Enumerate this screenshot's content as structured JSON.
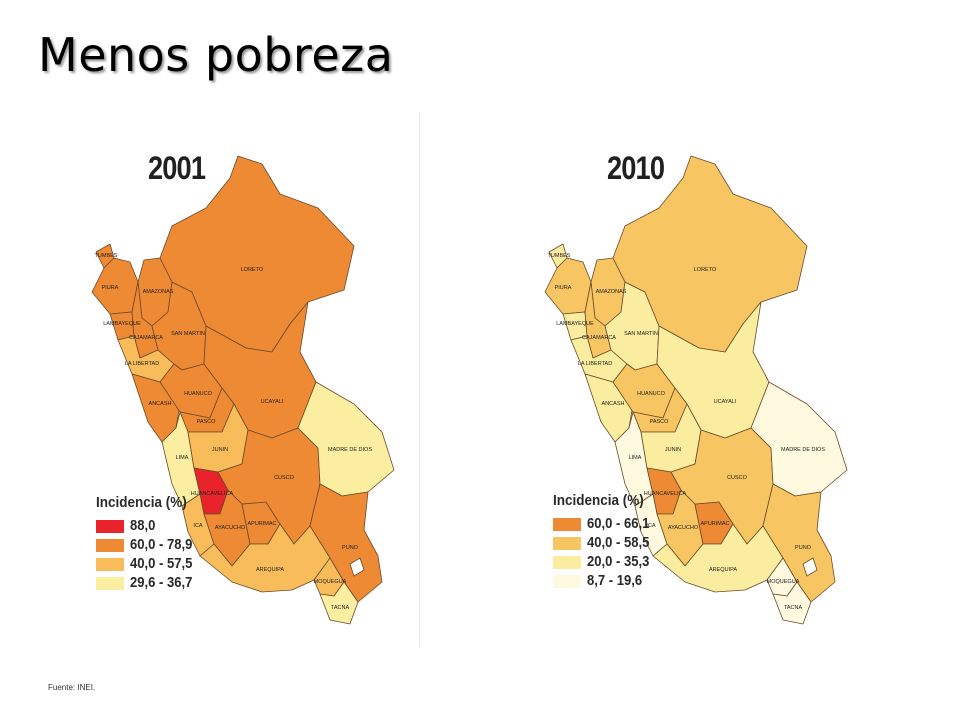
{
  "title": "Menos pobreza",
  "source": "Fuente: INEI.",
  "maps": [
    {
      "year": "2001",
      "legend_title": "Incidencia (%)",
      "legend": [
        {
          "label": "88,0",
          "color": "#e8232c"
        },
        {
          "label": "60,0 - 78,9",
          "color": "#ee8a34"
        },
        {
          "label": "40,0 - 57,5",
          "color": "#f8bd5a"
        },
        {
          "label": "29,6 - 36,7",
          "color": "#fbeea0"
        }
      ],
      "regions": [
        {
          "name": "TUMBES",
          "color": "#ee8a34"
        },
        {
          "name": "PIURA",
          "color": "#ee8a34"
        },
        {
          "name": "LAMBAYEQUE",
          "color": "#ee8a34"
        },
        {
          "name": "AMAZONAS",
          "color": "#ee8a34"
        },
        {
          "name": "CAJAMARCA",
          "color": "#ee8a34"
        },
        {
          "name": "LA LIBERTAD",
          "color": "#f8bd5a"
        },
        {
          "name": "SAN MARTIN",
          "color": "#ee8a34"
        },
        {
          "name": "LORETO",
          "color": "#ee8a34"
        },
        {
          "name": "ANCASH",
          "color": "#ee8a34"
        },
        {
          "name": "HUANUCO",
          "color": "#ee8a34"
        },
        {
          "name": "UCAYALI",
          "color": "#ee8a34"
        },
        {
          "name": "PASCO",
          "color": "#ee8a34"
        },
        {
          "name": "LIMA",
          "color": "#fbeea0"
        },
        {
          "name": "JUNIN",
          "color": "#f8bd5a"
        },
        {
          "name": "HUANCAVELICA",
          "color": "#e8232c"
        },
        {
          "name": "ICA",
          "color": "#f8bd5a"
        },
        {
          "name": "AYACUCHO",
          "color": "#ee8a34"
        },
        {
          "name": "APURIMAC",
          "color": "#ee8a34"
        },
        {
          "name": "CUSCO",
          "color": "#ee8a34"
        },
        {
          "name": "MADRE DE DIOS",
          "color": "#fbeea0"
        },
        {
          "name": "PUNO",
          "color": "#ee8a34"
        },
        {
          "name": "AREQUIPA",
          "color": "#f8bd5a"
        },
        {
          "name": "MOQUEGUA",
          "color": "#f8bd5a"
        },
        {
          "name": "TACNA",
          "color": "#fbeea0"
        }
      ]
    },
    {
      "year": "2010",
      "legend_title": "Incidencia (%)",
      "legend": [
        {
          "label": "60,0 - 66,1",
          "color": "#ee8a34"
        },
        {
          "label": "40,0 - 58,5",
          "color": "#f8c563"
        },
        {
          "label": "20,0 - 35,3",
          "color": "#fbeda0"
        },
        {
          "label": "8,7 - 19,6",
          "color": "#fef9df"
        }
      ],
      "regions": [
        {
          "name": "TUMBES",
          "color": "#fbeda0"
        },
        {
          "name": "PIURA",
          "color": "#f8c563"
        },
        {
          "name": "LAMBAYEQUE",
          "color": "#fbeda0"
        },
        {
          "name": "AMAZONAS",
          "color": "#f8c563"
        },
        {
          "name": "CAJAMARCA",
          "color": "#f8c563"
        },
        {
          "name": "LA LIBERTAD",
          "color": "#fbeda0"
        },
        {
          "name": "SAN MARTIN",
          "color": "#fbeda0"
        },
        {
          "name": "LORETO",
          "color": "#f8c563"
        },
        {
          "name": "ANCASH",
          "color": "#fbeda0"
        },
        {
          "name": "HUANUCO",
          "color": "#f8c563"
        },
        {
          "name": "UCAYALI",
          "color": "#fbeda0"
        },
        {
          "name": "PASCO",
          "color": "#f8c563"
        },
        {
          "name": "LIMA",
          "color": "#fef9df"
        },
        {
          "name": "JUNIN",
          "color": "#fbeda0"
        },
        {
          "name": "HUANCAVELICA",
          "color": "#ee8a34"
        },
        {
          "name": "ICA",
          "color": "#fef9df"
        },
        {
          "name": "AYACUCHO",
          "color": "#f8c563"
        },
        {
          "name": "APURIMAC",
          "color": "#ee8a34"
        },
        {
          "name": "CUSCO",
          "color": "#f8c563"
        },
        {
          "name": "MADRE DE DIOS",
          "color": "#fef9df"
        },
        {
          "name": "PUNO",
          "color": "#f8c563"
        },
        {
          "name": "AREQUIPA",
          "color": "#fbeda0"
        },
        {
          "name": "MOQUEGUA",
          "color": "#fef9df"
        },
        {
          "name": "TACNA",
          "color": "#fef9df"
        }
      ]
    }
  ]
}
